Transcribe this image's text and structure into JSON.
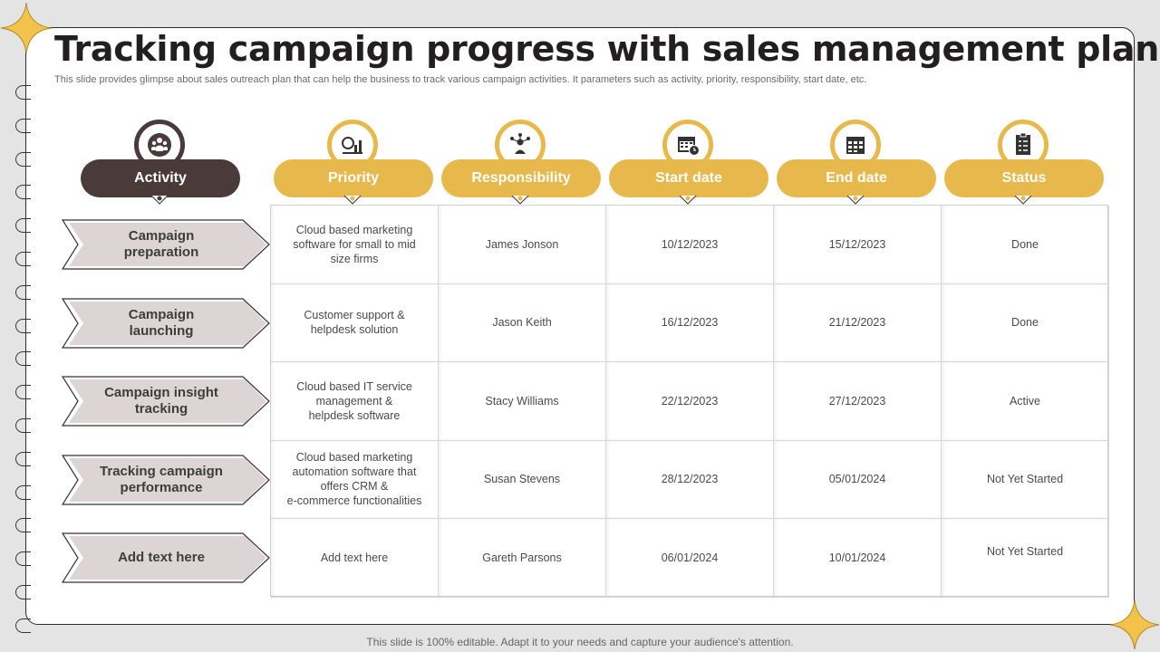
{
  "title": "Tracking campaign progress with sales management plan",
  "subtitle": "This slide provides glimpse about sales outreach plan that can help the business to track various campaign activities. It parameters such as activity, priority, responsibility, start date, etc.",
  "footer": "This slide is 100% editable. Adapt it to your needs and capture your audience's attention.",
  "colors": {
    "accent": "#e7b94d",
    "dark": "#4a3a3a",
    "row_label_bg": "#ddd5d5"
  },
  "headers": [
    {
      "label": "Activity",
      "icon": "team-icon"
    },
    {
      "label": "Priority",
      "icon": "priority-chart-icon"
    },
    {
      "label": "Responsibility",
      "icon": "network-person-icon"
    },
    {
      "label": "Start date",
      "icon": "calendar-clock-icon"
    },
    {
      "label": "End date",
      "icon": "calendar-icon"
    },
    {
      "label": "Status",
      "icon": "checklist-icon"
    }
  ],
  "rows": [
    {
      "activity": "Campaign\npreparation",
      "priority": "Cloud based marketing\nsoftware for small to mid\nsize firms",
      "responsibility": "James Jonson",
      "start": "10/12/2023",
      "end": "15/12/2023",
      "status": "Done"
    },
    {
      "activity": "Campaign\nlaunching",
      "priority": "Customer support &\nhelpdesk solution",
      "responsibility": "Jason Keith",
      "start": "16/12/2023",
      "end": "21/12/2023",
      "status": "Done"
    },
    {
      "activity": "Campaign insight\ntracking",
      "priority": "Cloud based IT service\nmanagement &\nhelpdesk software",
      "responsibility": "Stacy Williams",
      "start": "22/12/2023",
      "end": "27/12/2023",
      "status": "Active"
    },
    {
      "activity": "Tracking campaign\nperformance",
      "priority": "Cloud based marketing\nautomation software that\noffers CRM &\ne-commerce functionalities",
      "responsibility": "Susan Stevens",
      "start": "28/12/2023",
      "end": "05/01/2024",
      "status": "Not Yet Started"
    },
    {
      "activity": "Add text here",
      "priority": "Add text here",
      "responsibility": "Gareth Parsons",
      "start": "06/01/2024",
      "end": "10/01/2024",
      "status": "Not Yet Started"
    }
  ]
}
